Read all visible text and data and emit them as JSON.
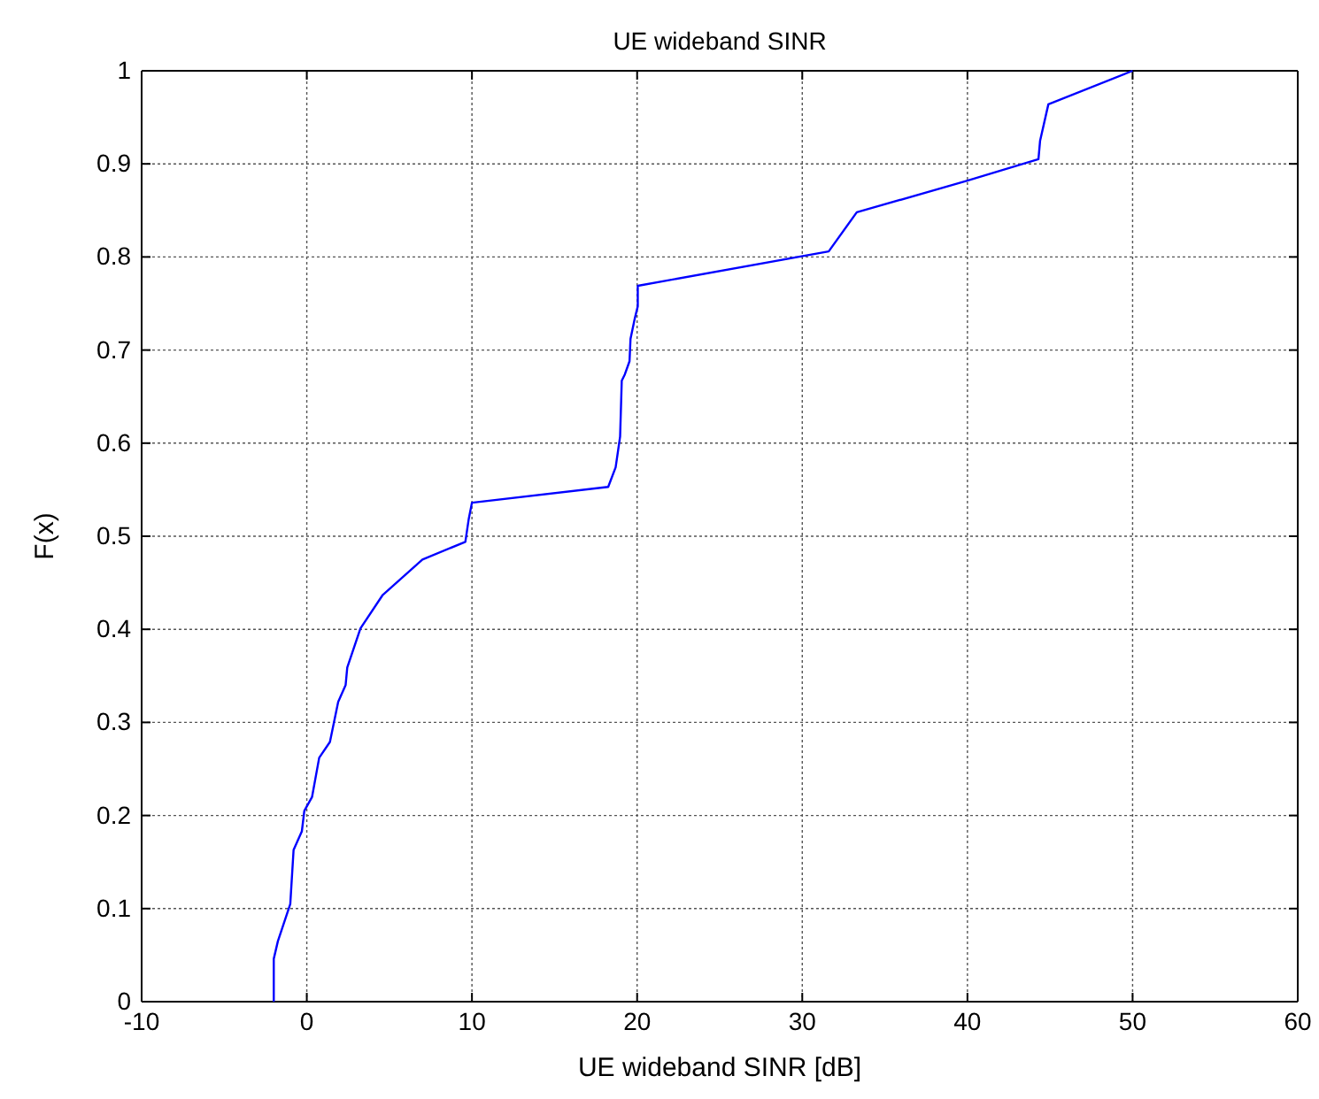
{
  "chart_data": {
    "type": "line",
    "title": "UE wideband SINR",
    "xlabel": "UE wideband SINR [dB]",
    "ylabel": "F(x)",
    "xlim": [
      -10,
      60
    ],
    "xticks": [
      -10,
      0,
      10,
      20,
      30,
      40,
      50,
      60
    ],
    "ylim": [
      0,
      1
    ],
    "yticks": [
      0,
      0.1,
      0.2,
      0.3,
      0.4,
      0.5,
      0.6,
      0.7,
      0.8,
      0.9,
      1
    ],
    "grid": true,
    "series": [
      {
        "color": "#0000ff",
        "x": [
          -2.0,
          -2.0,
          -1.75,
          -1.0,
          -0.8,
          -0.3,
          -0.15,
          0.32,
          0.75,
          1.4,
          1.9,
          2.35,
          2.45,
          3.25,
          4.6,
          7.0,
          9.6,
          9.8,
          10.0,
          18.25,
          18.7,
          18.97,
          19.07,
          19.26,
          19.54,
          19.6,
          19.86,
          20.04,
          20.04,
          31.6,
          33.3,
          40.0,
          44.3,
          44.4,
          44.9,
          50.0
        ],
        "values": [
          0,
          0.046,
          0.065,
          0.105,
          0.163,
          0.183,
          0.205,
          0.22,
          0.262,
          0.279,
          0.322,
          0.34,
          0.359,
          0.401,
          0.437,
          0.475,
          0.494,
          0.518,
          0.536,
          0.553,
          0.574,
          0.607,
          0.667,
          0.674,
          0.688,
          0.712,
          0.734,
          0.747,
          0.769,
          0.806,
          0.848,
          0.882,
          0.905,
          0.925,
          0.964,
          1.0
        ]
      }
    ]
  }
}
